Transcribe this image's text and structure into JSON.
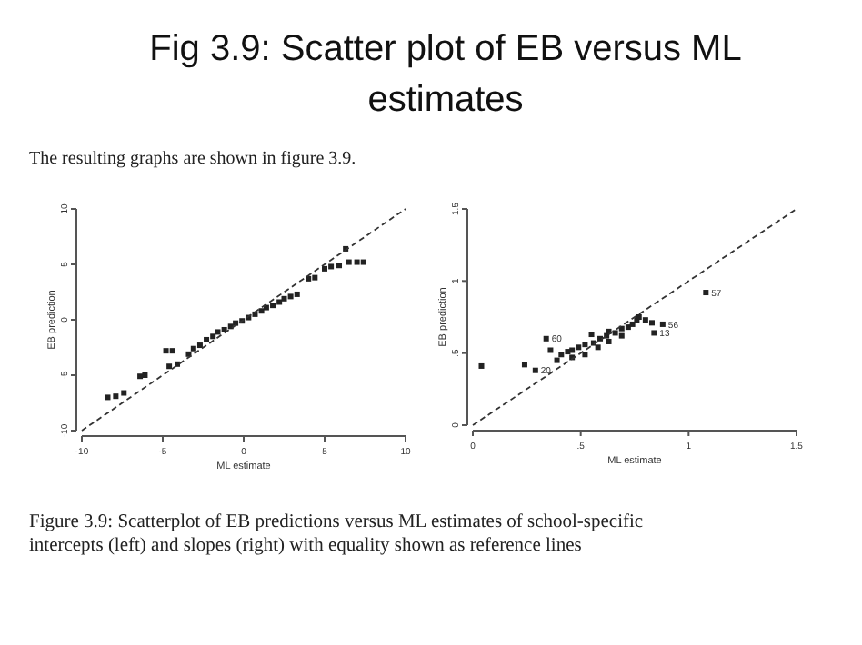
{
  "chart_data": [
    {
      "type": "scatter",
      "title": "Fig 3.9: Scatter plot of EB versus ML estimates",
      "subtitle": "The resulting graphs are shown in figure 3.9.",
      "xlabel": "ML estimate",
      "ylabel": "EB prediction",
      "xlim": [
        -10,
        10
      ],
      "ylim": [
        -10,
        10
      ],
      "xticks": [
        -10,
        -5,
        0,
        5,
        10
      ],
      "yticks": [
        -10,
        -5,
        0,
        5,
        10
      ],
      "grid": false,
      "marker": "square",
      "annotations": [
        "Figure 3.9: Scatterplot of EB predictions versus ML estimates of school-specific intercepts (left) and slopes (right) with equality shown as reference lines"
      ],
      "series": [
        {
          "color": "#222222",
          "x": [
            -8.4,
            -7.9,
            -7.4,
            -6.4,
            -6.1,
            -4.8,
            -4.4,
            -4.6,
            -4.1,
            -3.4,
            -3.1,
            -2.7,
            -2.3,
            -1.9,
            -1.6,
            -1.2,
            -0.8,
            -0.5,
            -0.1,
            0.3,
            0.7,
            1.1,
            1.4,
            1.8,
            2.2,
            2.5,
            2.9,
            3.3,
            4.0,
            4.4,
            5.0,
            5.4,
            5.9,
            6.3,
            6.5,
            7.0,
            7.4
          ],
          "values": [
            -7.0,
            -6.9,
            -6.6,
            -5.1,
            -5.0,
            -2.8,
            -2.8,
            -4.2,
            -4.0,
            -3.1,
            -2.6,
            -2.3,
            -1.8,
            -1.5,
            -1.1,
            -0.9,
            -0.6,
            -0.3,
            -0.1,
            0.2,
            0.5,
            0.8,
            1.1,
            1.3,
            1.6,
            1.9,
            2.1,
            2.3,
            3.7,
            3.8,
            4.6,
            4.8,
            4.9,
            6.4,
            5.2,
            5.2,
            5.2
          ]
        },
        {
          "type": "line",
          "color": "#333333",
          "line_style": "dashed",
          "marker": "none",
          "x": [
            -10,
            10
          ],
          "values": [
            -10,
            10
          ]
        }
      ]
    },
    {
      "type": "scatter",
      "xlabel": "ML estimate",
      "ylabel": "EB prediction",
      "xlim": [
        0,
        1.5
      ],
      "ylim": [
        0,
        1.5
      ],
      "xticks": [
        0,
        {
          "value": 0.5,
          "label": ".5"
        },
        1,
        1.5
      ],
      "yticks": [
        0,
        {
          "value": 0.5,
          "label": ".5"
        },
        1,
        1.5
      ],
      "grid": false,
      "marker": "square",
      "annotations": [
        {
          "text": "57",
          "x": 1.08,
          "y": 0.92
        },
        {
          "text": "56",
          "x": 0.88,
          "y": 0.7
        },
        {
          "text": "13",
          "x": 0.84,
          "y": 0.64
        },
        {
          "text": "60",
          "x": 0.34,
          "y": 0.6
        },
        {
          "text": "20",
          "x": 0.29,
          "y": 0.38
        }
      ],
      "series": [
        {
          "color": "#222222",
          "x": [
            0.04,
            0.24,
            0.29,
            0.34,
            0.36,
            0.39,
            0.41,
            0.44,
            0.46,
            0.49,
            0.52,
            0.55,
            0.56,
            0.59,
            0.62,
            0.63,
            0.66,
            0.69,
            0.72,
            0.74,
            0.76,
            0.77,
            0.8,
            0.83,
            0.84,
            0.88,
            1.08,
            0.46,
            0.52,
            0.58,
            0.63,
            0.69
          ],
          "values": [
            0.41,
            0.42,
            0.38,
            0.6,
            0.52,
            0.45,
            0.49,
            0.51,
            0.52,
            0.54,
            0.56,
            0.63,
            0.57,
            0.6,
            0.62,
            0.65,
            0.64,
            0.67,
            0.68,
            0.7,
            0.73,
            0.75,
            0.73,
            0.71,
            0.64,
            0.7,
            0.92,
            0.47,
            0.49,
            0.54,
            0.58,
            0.62
          ]
        },
        {
          "type": "line",
          "color": "#333333",
          "line_style": "dashed",
          "marker": "none",
          "x": [
            0,
            1.5
          ],
          "values": [
            0,
            1.5
          ]
        }
      ]
    }
  ]
}
